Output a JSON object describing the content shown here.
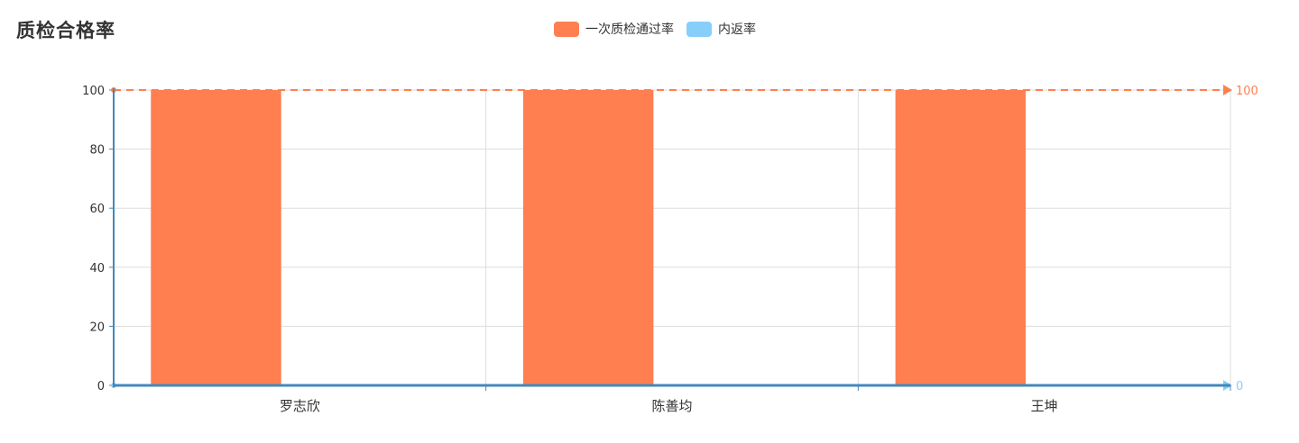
{
  "chart_data": {
    "type": "bar",
    "title": "质检合格率",
    "categories": [
      "罗志欣",
      "陈善均",
      "王坤"
    ],
    "series": [
      {
        "name": "一次质检通过率",
        "values": [
          100,
          100,
          100
        ],
        "color": "#ff7f50"
      },
      {
        "name": "内返率",
        "values": [
          0,
          0,
          0
        ],
        "color": "#87cefa"
      }
    ],
    "ylim": [
      0,
      100
    ],
    "yticks": [
      "0",
      "20",
      "40",
      "60",
      "80",
      "100"
    ],
    "reference_lines": [
      {
        "series": "一次质检通过率",
        "value": 100,
        "label": "100",
        "color": "#ff7f50"
      },
      {
        "series": "内返率",
        "value": 0,
        "label": "0",
        "color": "#87cefa"
      }
    ],
    "grid": true,
    "legend_position": "top-center"
  }
}
